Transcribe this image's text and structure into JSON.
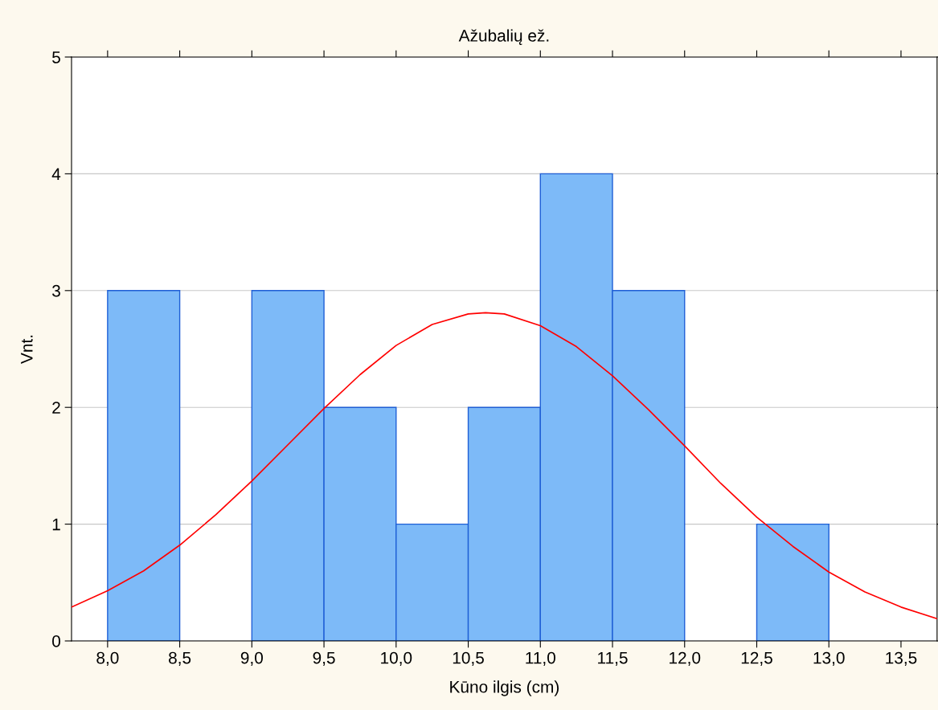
{
  "chart_data": {
    "type": "histogram",
    "title": "Ažubalių ež.",
    "xlabel": "Kūno ilgis (cm)",
    "ylabel": "Vnt.",
    "bins": [
      8.0,
      8.5,
      9.0,
      9.5,
      10.0,
      10.5,
      11.0,
      11.5,
      12.0,
      12.5,
      13.0
    ],
    "series": [
      {
        "type": "histogram",
        "color": "#7dbaf8",
        "values": [
          3,
          0,
          3,
          2,
          1,
          2,
          4,
          3,
          0,
          1
        ]
      },
      {
        "type": "line",
        "color": "#ff0000",
        "x": [
          7.75,
          8.0,
          8.25,
          8.5,
          8.75,
          9.0,
          9.25,
          9.5,
          9.75,
          10.0,
          10.25,
          10.5,
          10.62,
          10.75,
          11.0,
          11.25,
          11.5,
          11.75,
          12.0,
          12.25,
          12.5,
          12.75,
          13.0,
          13.25,
          13.5,
          13.75
        ],
        "values": [
          0.29,
          0.43,
          0.6,
          0.82,
          1.08,
          1.37,
          1.68,
          1.99,
          2.28,
          2.53,
          2.71,
          2.8,
          2.81,
          2.8,
          2.7,
          2.52,
          2.27,
          1.98,
          1.67,
          1.35,
          1.06,
          0.81,
          0.59,
          0.42,
          0.29,
          0.19
        ]
      }
    ],
    "xlim": [
      7.75,
      13.75
    ],
    "ylim": [
      0,
      5
    ],
    "xticks": [
      {
        "value": 8.0,
        "label": "8,0"
      },
      {
        "value": 8.5,
        "label": "8,5"
      },
      {
        "value": 9.0,
        "label": "9,0"
      },
      {
        "value": 9.5,
        "label": "9,5"
      },
      {
        "value": 10.0,
        "label": "10,0"
      },
      {
        "value": 10.5,
        "label": "10,5"
      },
      {
        "value": 11.0,
        "label": "11,0"
      },
      {
        "value": 11.5,
        "label": "11,5"
      },
      {
        "value": 12.0,
        "label": "12,0"
      },
      {
        "value": 12.5,
        "label": "12,5"
      },
      {
        "value": 13.0,
        "label": "13,0"
      },
      {
        "value": 13.5,
        "label": "13,5"
      }
    ],
    "yticks": [
      0,
      1,
      2,
      3,
      4,
      5
    ],
    "grid": "y",
    "legend": false
  }
}
